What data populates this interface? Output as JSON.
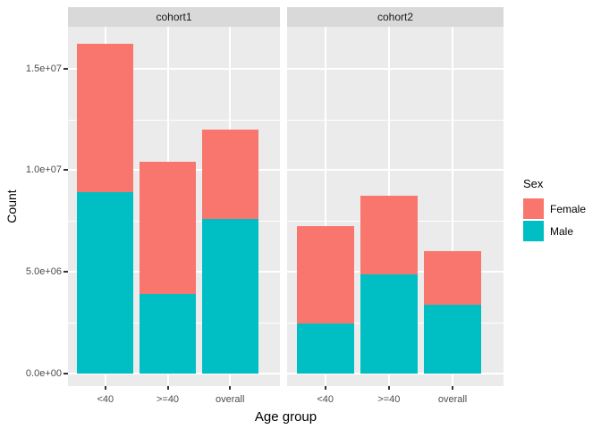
{
  "chart_data": {
    "type": "bar",
    "subtype": "stacked",
    "title": "",
    "xlabel": "Age group",
    "ylabel": "Count",
    "legend_title": "Sex",
    "legend_position": "right",
    "grid": true,
    "categories": [
      "<40",
      ">=40",
      "overall"
    ],
    "ylim": [
      -800000,
      17050000
    ],
    "yticks": [
      {
        "value": 0,
        "label": "0.0e+00"
      },
      {
        "value": 5000000,
        "label": "5.0e+06"
      },
      {
        "value": 10000000,
        "label": "1.0e+07"
      },
      {
        "value": 15000000,
        "label": "1.5e+07"
      }
    ],
    "stack_order_bottom_to_top": [
      "Male",
      "Female"
    ],
    "facets": [
      {
        "label": "cohort1",
        "series": [
          {
            "name": "Male",
            "color": "#00BFC4",
            "values": [
              8900000,
              3900000,
              7600000
            ]
          },
          {
            "name": "Female",
            "color": "#F8766D",
            "values": [
              7300000,
              6500000,
              4400000
            ]
          }
        ],
        "totals": [
          16200000,
          10400000,
          12000000
        ]
      },
      {
        "label": "cohort2",
        "series": [
          {
            "name": "Male",
            "color": "#00BFC4",
            "values": [
              2450000,
              4870000,
              3370000
            ]
          },
          {
            "name": "Female",
            "color": "#F8766D",
            "values": [
              4800000,
              3870000,
              2630000
            ]
          }
        ],
        "totals": [
          7250000,
          8740000,
          6000000
        ]
      }
    ],
    "legend_entries": [
      {
        "label": "Female",
        "color": "#F8766D"
      },
      {
        "label": "Male",
        "color": "#00BFC4"
      }
    ],
    "colors": {
      "female": "#F8766D",
      "male": "#00BFC4",
      "panel_background": "#EBEBEB",
      "strip_background": "#D9D9D9",
      "gridline": "#FFFFFF",
      "axis_text": "#4D4D4D",
      "tick_mark": "#333333"
    }
  }
}
